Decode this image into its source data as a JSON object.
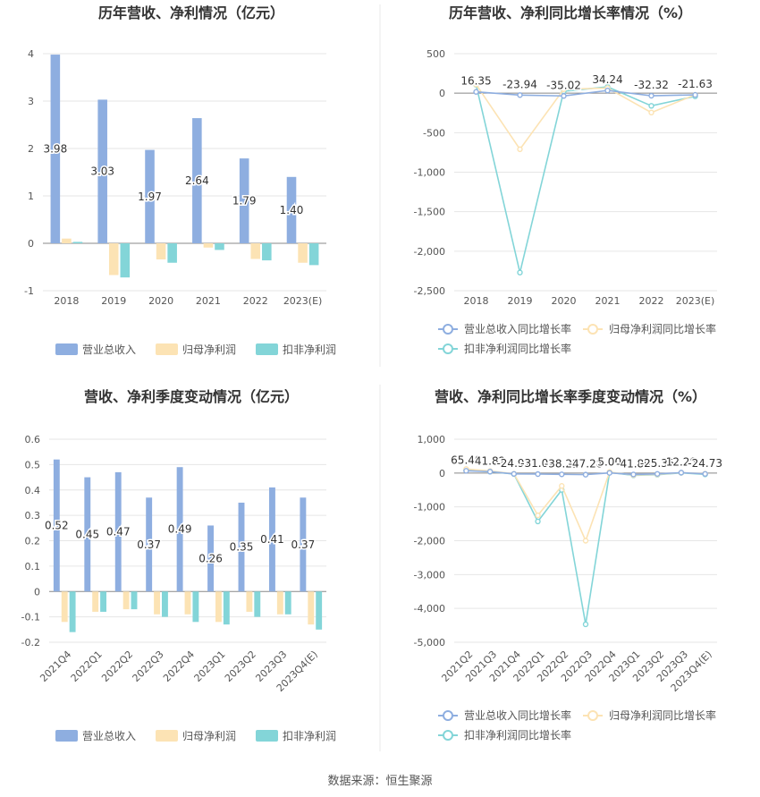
{
  "source_text": "数据来源：恒生聚源",
  "colors": {
    "revenue": "#8eaee0",
    "parent_profit": "#fce3b4",
    "deducted_profit": "#83d5d8",
    "axis": "#555555",
    "grid": "#e6e6e6"
  },
  "chart_data": [
    {
      "type": "bar",
      "title": "历年营收、净利情况（亿元）",
      "categories": [
        "2018",
        "2019",
        "2020",
        "2021",
        "2022",
        "2023(E)"
      ],
      "ylim": [
        -1,
        4
      ],
      "yticks": [
        -1,
        0,
        1,
        2,
        3,
        4
      ],
      "yticklabels": [
        "-1",
        "0",
        "1",
        "2",
        "3",
        "4"
      ],
      "series": [
        {
          "name": "营业总收入",
          "values": [
            3.98,
            3.03,
            1.97,
            2.64,
            1.79,
            1.4
          ],
          "labels": [
            "3.98",
            "3.03",
            "1.97",
            "2.64",
            "1.79",
            "1.40"
          ]
        },
        {
          "name": "归母净利润",
          "values": [
            0.1,
            -0.67,
            -0.34,
            -0.09,
            -0.33,
            -0.41
          ]
        },
        {
          "name": "扣非净利润",
          "values": [
            0.03,
            -0.72,
            -0.41,
            -0.14,
            -0.36,
            -0.46
          ]
        }
      ],
      "legend_position": "bottom",
      "grid": true
    },
    {
      "type": "line",
      "title": "历年营收、净利同比增长率情况（%）",
      "categories": [
        "2018",
        "2019",
        "2020",
        "2021",
        "2022",
        "2023(E)"
      ],
      "ylim": [
        -2500,
        500
      ],
      "yticks": [
        -2500,
        -2000,
        -1500,
        -1000,
        -500,
        0,
        500
      ],
      "yticklabels": [
        "-2,500",
        "-2,000",
        "-1,500",
        "-1,000",
        "-500",
        "0",
        "500"
      ],
      "series": [
        {
          "name": "营业总收入同比增长率",
          "values": [
            16.35,
            -23.94,
            -35.02,
            34.24,
            -32.32,
            -21.63
          ],
          "labels": [
            "16.35",
            "-23.94",
            "-35.02",
            "34.24",
            "-32.32",
            "-21.63"
          ]
        },
        {
          "name": "归母净利润同比增长率",
          "values": [
            110,
            -710,
            50,
            65,
            -245,
            -20
          ]
        },
        {
          "name": "扣非净利润同比增长率",
          "values": [
            105,
            -2270,
            25,
            80,
            -160,
            -40
          ]
        }
      ],
      "legend_position": "bottom",
      "grid": true
    },
    {
      "type": "bar",
      "title": "营收、净利季度变动情况（亿元）",
      "categories": [
        "2021Q4",
        "2022Q1",
        "2022Q2",
        "2022Q3",
        "2022Q4",
        "2023Q1",
        "2023Q2",
        "2023Q3",
        "2023Q4(E)"
      ],
      "ylim": [
        -0.2,
        0.6
      ],
      "yticks": [
        -0.2,
        -0.1,
        0,
        0.1,
        0.2,
        0.3,
        0.4,
        0.5,
        0.6
      ],
      "yticklabels": [
        "-0.2",
        "-0.1",
        "0",
        "0.1",
        "0.2",
        "0.3",
        "0.4",
        "0.5",
        "0.6"
      ],
      "series": [
        {
          "name": "营业总收入",
          "values": [
            0.52,
            0.45,
            0.47,
            0.37,
            0.49,
            0.26,
            0.35,
            0.41,
            0.37
          ],
          "labels": [
            "0.52",
            "0.45",
            "0.47",
            "0.37",
            "0.49",
            "0.26",
            "0.35",
            "0.41",
            "0.37"
          ]
        },
        {
          "name": "归母净利润",
          "values": [
            -0.12,
            -0.08,
            -0.07,
            -0.09,
            -0.09,
            -0.12,
            -0.08,
            -0.09,
            -0.13
          ]
        },
        {
          "name": "扣非净利润",
          "values": [
            -0.16,
            -0.08,
            -0.07,
            -0.1,
            -0.12,
            -0.13,
            -0.1,
            -0.09,
            -0.15
          ]
        }
      ],
      "legend_position": "bottom",
      "grid": true
    },
    {
      "type": "line",
      "title": "营收、净利同比增长率季度变动情况（%）",
      "categories": [
        "2021Q2",
        "2021Q3",
        "2021Q4",
        "2022Q1",
        "2022Q2",
        "2022Q3",
        "2022Q4",
        "2023Q1",
        "2023Q2",
        "2023Q3",
        "2023Q4(E)"
      ],
      "ylim": [
        -5000,
        1000
      ],
      "yticks": [
        -5000,
        -4000,
        -3000,
        -2000,
        -1000,
        0,
        1000
      ],
      "yticklabels": [
        "-5,000",
        "-4,000",
        "-3,000",
        "-2,000",
        "-1,000",
        "0",
        "1,000"
      ],
      "series": [
        {
          "name": "营业总收入同比增长率",
          "values": [
            65.4,
            41.82,
            -24.92,
            -31.04,
            -38.22,
            -47.28,
            5.0,
            -41.89,
            -25.35,
            12.28,
            -24.73
          ],
          "labels": [
            "65.40",
            "41.82",
            "-24.92",
            "-31.04",
            "-38.22",
            "-47.28",
            "5.00",
            "-41.89",
            "-25.35",
            "12.28",
            "-24.73"
          ]
        },
        {
          "name": "归母净利润同比增长率",
          "values": [
            120,
            60,
            -20,
            -1250,
            -380,
            -2000,
            30,
            -60,
            -40,
            10,
            -20
          ]
        },
        {
          "name": "扣非净利润同比增长率",
          "values": [
            80,
            40,
            -30,
            -1430,
            -500,
            -4470,
            20,
            -70,
            -50,
            5,
            -40
          ]
        }
      ],
      "legend_position": "bottom",
      "grid": true
    }
  ]
}
